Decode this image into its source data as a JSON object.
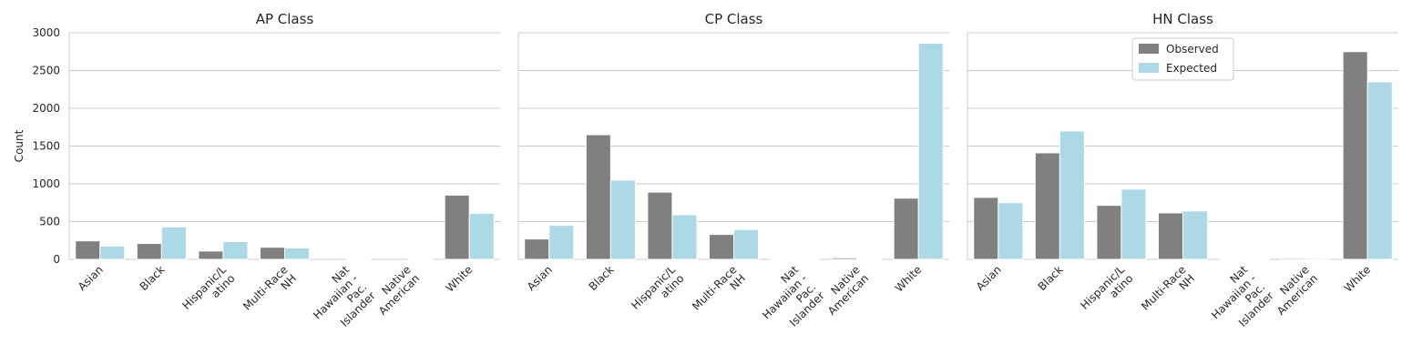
{
  "chart_data": {
    "type": "bar",
    "ylabel": "Count",
    "ylim": [
      0,
      3000
    ],
    "yticks": [
      0,
      500,
      1000,
      1500,
      2000,
      2500,
      3000
    ],
    "grid": "y",
    "legend": {
      "placement": "top-center of third panel"
    },
    "categories": [
      "Asian",
      "Black",
      "Hispanic/Latino",
      "Multi-Race NH",
      "Nat Hawaiian - Pac. Islander",
      "Native American",
      "White"
    ],
    "category_labels": [
      [
        "Asian"
      ],
      [
        "Black"
      ],
      [
        "Hispanic/L",
        "atino"
      ],
      [
        "Multi-Race",
        "NH"
      ],
      [
        "Nat",
        "Hawaiian -",
        "Pac.",
        "Islander"
      ],
      [
        "Native",
        "American"
      ],
      [
        "White"
      ]
    ],
    "series_colors": {
      "Observed": "#808080",
      "Expected": "#add8e6"
    },
    "panels": [
      {
        "title": "AP Class",
        "series": [
          {
            "name": "Observed",
            "values": [
              245,
              210,
              110,
              160,
              0,
              0,
              850
            ]
          },
          {
            "name": "Expected",
            "values": [
              175,
              430,
              235,
              150,
              3,
              5,
              610
            ]
          }
        ]
      },
      {
        "title": "CP Class",
        "series": [
          {
            "name": "Observed",
            "values": [
              270,
              1650,
              890,
              330,
              5,
              20,
              810
            ]
          },
          {
            "name": "Expected",
            "values": [
              450,
              1050,
              590,
              395,
              5,
              12,
              2860
            ]
          }
        ]
      },
      {
        "title": "HN Class",
        "series": [
          {
            "name": "Observed",
            "values": [
              820,
              1410,
              715,
              615,
              3,
              15,
              2750
            ]
          },
          {
            "name": "Expected",
            "values": [
              750,
              1700,
              930,
              640,
              5,
              15,
              2350
            ]
          }
        ]
      }
    ]
  }
}
